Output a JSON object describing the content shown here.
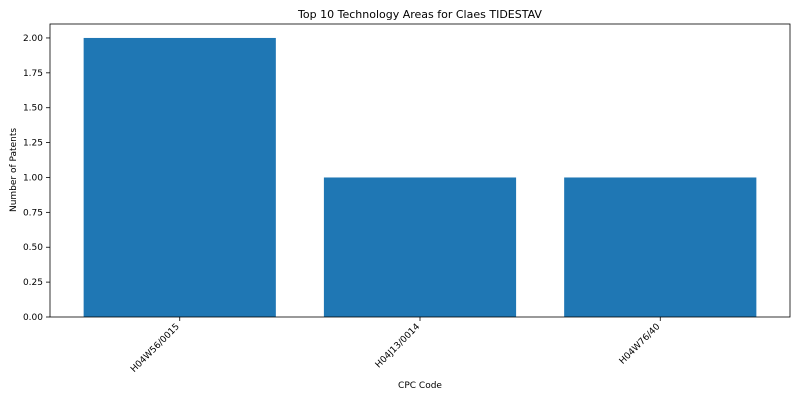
{
  "chart_data": {
    "type": "bar",
    "title": "Top 10 Technology Areas for Claes TIDESTAV",
    "x_label": "CPC Code",
    "y_label": "Number of Patents",
    "categories": [
      "H04W56/0015",
      "H04J13/0014",
      "H04W76/40"
    ],
    "values": [
      2,
      1,
      1
    ],
    "color": "#1f77b4",
    "ylim": [
      0,
      2.1
    ],
    "yticks": [
      {
        "value": 0,
        "label": "0.00"
      },
      {
        "value": 0.25,
        "label": "0.25"
      },
      {
        "value": 0.5,
        "label": "0.50"
      },
      {
        "value": 0.75,
        "label": "0.75"
      },
      {
        "value": 1,
        "label": "1.00"
      },
      {
        "value": 1.25,
        "label": "1.25"
      },
      {
        "value": 1.5,
        "label": "1.50"
      },
      {
        "value": 1.75,
        "label": "1.75"
      },
      {
        "value": 2,
        "label": "2.00"
      }
    ],
    "grid": false
  }
}
